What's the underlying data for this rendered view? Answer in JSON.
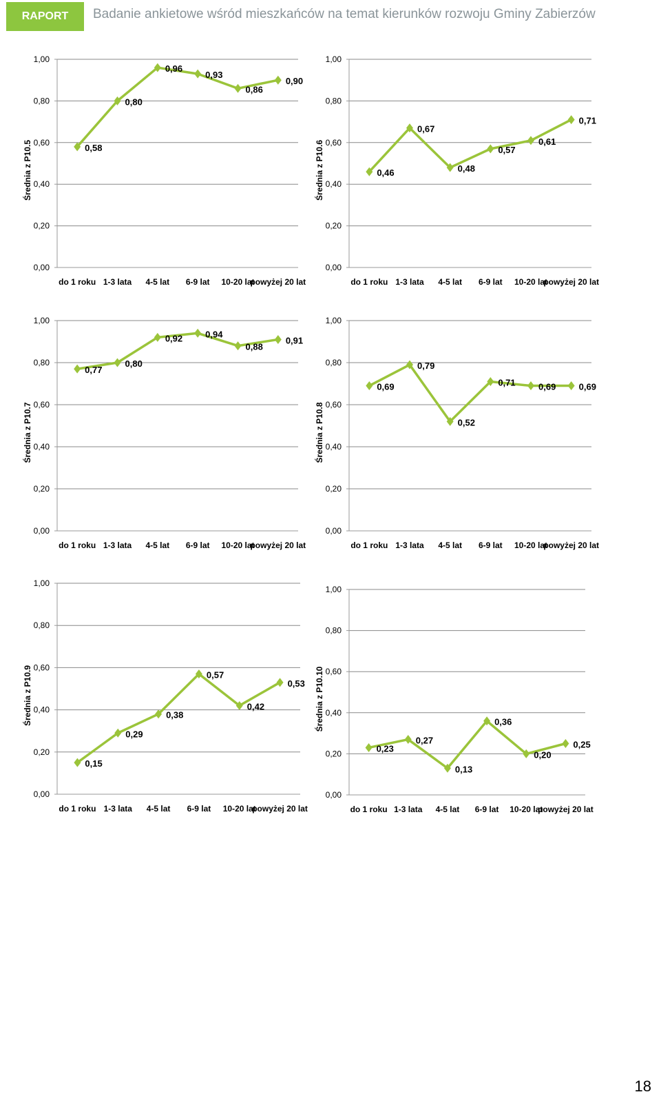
{
  "header": {
    "badge": "RAPORT",
    "title": "Badanie ankietowe wśród mieszkańców na temat kierunków rozwoju Gminy Zabierzów"
  },
  "page_number": "18",
  "colors": {
    "accent": "#8dc63f",
    "line": "#9bc43a",
    "grid": "#888888"
  },
  "chart_data": [
    {
      "type": "line",
      "ylabel": "Średnia z P10.5",
      "categories": [
        "do 1 roku",
        "1-3 lata",
        "4-5 lat",
        "6-9 lat",
        "10-20 lat",
        "powyżej 20 lat"
      ],
      "values": [
        0.58,
        0.8,
        0.96,
        0.93,
        0.86,
        0.9
      ],
      "data_labels": [
        "0,58",
        "0,80",
        "0,96",
        "0,93",
        "0,86",
        "0,90"
      ],
      "ylim": [
        0,
        1
      ],
      "yticks": [
        "0,00",
        "0,20",
        "0,40",
        "0,60",
        "0,80",
        "1,00"
      ],
      "grid": true
    },
    {
      "type": "line",
      "ylabel": "Średnia z P10.6",
      "categories": [
        "do 1 roku",
        "1-3 lata",
        "4-5 lat",
        "6-9 lat",
        "10-20 lat",
        "powyżej 20 lat"
      ],
      "values": [
        0.46,
        0.67,
        0.48,
        0.57,
        0.61,
        0.71
      ],
      "data_labels": [
        "0,46",
        "0,67",
        "0,48",
        "0,57",
        "0,61",
        "0,71"
      ],
      "ylim": [
        0,
        1
      ],
      "yticks": [
        "0,00",
        "0,20",
        "0,40",
        "0,60",
        "0,80",
        "1,00"
      ],
      "grid": true
    },
    {
      "type": "line",
      "ylabel": "Średnia z P10.7",
      "categories": [
        "do 1 roku",
        "1-3 lata",
        "4-5 lat",
        "6-9 lat",
        "10-20 lat",
        "powyżej 20 lat"
      ],
      "values": [
        0.77,
        0.8,
        0.92,
        0.94,
        0.88,
        0.91
      ],
      "data_labels": [
        "0,77",
        "0,80",
        "0,92",
        "0,94",
        "0,88",
        "0,91"
      ],
      "ylim": [
        0,
        1
      ],
      "yticks": [
        "0,00",
        "0,20",
        "0,40",
        "0,60",
        "0,80",
        "1,00"
      ],
      "grid": true
    },
    {
      "type": "line",
      "ylabel": "Średnia z P10.8",
      "categories": [
        "do 1 roku",
        "1-3 lata",
        "4-5 lat",
        "6-9 lat",
        "10-20 lat",
        "powyżej 20 lat"
      ],
      "values": [
        0.69,
        0.79,
        0.52,
        0.71,
        0.69,
        0.69
      ],
      "data_labels": [
        "0,69",
        "0,79",
        "0,52",
        "0,71",
        "0,69",
        "0,69"
      ],
      "ylim": [
        0,
        1
      ],
      "yticks": [
        "0,00",
        "0,20",
        "0,40",
        "0,60",
        "0,80",
        "1,00"
      ],
      "grid": true
    },
    {
      "type": "line",
      "ylabel": "Średnia z P10.9",
      "categories": [
        "do 1 roku",
        "1-3 lata",
        "4-5 lat",
        "6-9 lat",
        "10-20 lat",
        "powyżej 20 lat"
      ],
      "values": [
        0.15,
        0.29,
        0.38,
        0.57,
        0.42,
        0.53
      ],
      "data_labels": [
        "0,15",
        "0,29",
        "0,38",
        "0,57",
        "0,42",
        "0,53"
      ],
      "ylim": [
        0,
        1
      ],
      "yticks": [
        "0,00",
        "0,20",
        "0,40",
        "0,60",
        "0,80",
        "1,00"
      ],
      "grid": true
    },
    {
      "type": "line",
      "ylabel": "Średnia z P10.10",
      "categories": [
        "do 1 roku",
        "1-3 lata",
        "4-5 lat",
        "6-9 lat",
        "10-20 lat",
        "powyżej 20 lat"
      ],
      "values": [
        0.23,
        0.27,
        0.13,
        0.36,
        0.2,
        0.25
      ],
      "data_labels": [
        "0,23",
        "0,27",
        "0,13",
        "0,36",
        "0,20",
        "0,25"
      ],
      "ylim": [
        0,
        1
      ],
      "yticks": [
        "0,00",
        "0,20",
        "0,40",
        "0,60",
        "0,80",
        "1,00"
      ],
      "grid": true
    }
  ]
}
